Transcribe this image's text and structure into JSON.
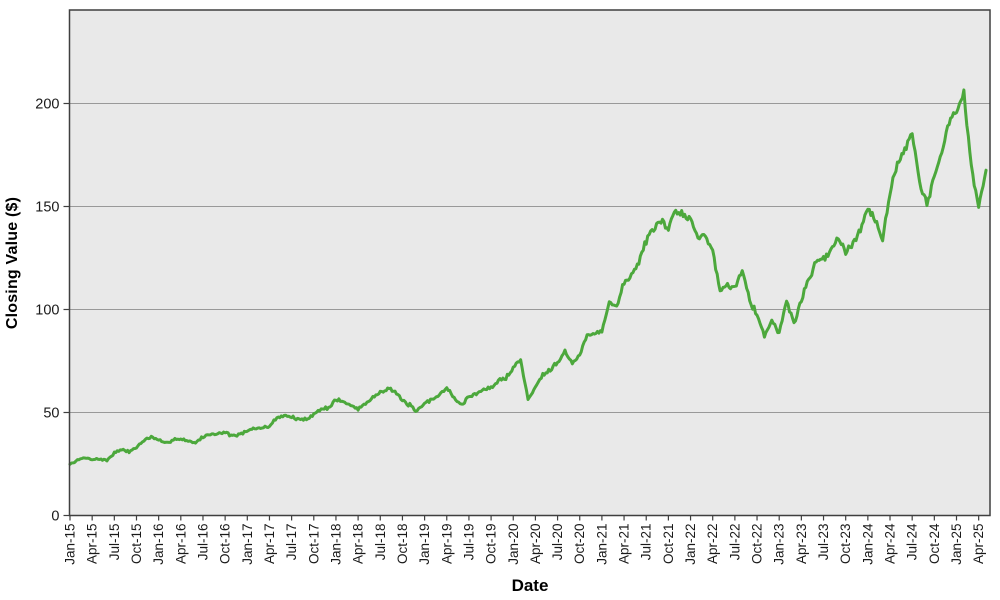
{
  "chart_data": {
    "type": "line",
    "title": "",
    "xlabel": "Date",
    "ylabel": "Closing Value ($)",
    "x_start": "Jan-15",
    "x_interval": "monthly",
    "x_tick_labels": [
      "Jan-15",
      "Apr-15",
      "Jul-15",
      "Oct-15",
      "Jan-16",
      "Apr-16",
      "Jul-16",
      "Oct-16",
      "Jan-17",
      "Apr-17",
      "Jul-17",
      "Oct-17",
      "Jan-18",
      "Apr-18",
      "Jul-18",
      "Oct-18",
      "Jan-19",
      "Apr-19",
      "Jul-19",
      "Oct-19",
      "Jan-20",
      "Apr-20",
      "Jul-20",
      "Oct-20",
      "Jan-21",
      "Apr-21",
      "Jul-21",
      "Oct-21",
      "Jan-22",
      "Apr-22",
      "Jul-22",
      "Oct-22",
      "Jan-23",
      "Apr-23",
      "Jul-23",
      "Oct-23",
      "Jan-24",
      "Apr-24",
      "Jul-24",
      "Oct-24",
      "Jan-25",
      "Apr-25"
    ],
    "y_tick_labels": [
      "0",
      "50",
      "100",
      "150",
      "200"
    ],
    "y_ticks": [
      0,
      50,
      100,
      150,
      200
    ],
    "ylim": [
      0,
      245.4
    ],
    "grid": "horizontal",
    "legend": "none",
    "series": [
      {
        "name": "Closing Value",
        "values": [
          24.8,
          26.8,
          28.0,
          27.3,
          27.4,
          26.7,
          30.5,
          31.8,
          31.0,
          33.1,
          36.5,
          38.0,
          36.5,
          35.0,
          37.0,
          37.2,
          36.2,
          35.3,
          38.2,
          39.4,
          39.8,
          40.4,
          38.6,
          39.4,
          40.9,
          42.3,
          42.4,
          43.4,
          47.4,
          48.7,
          47.8,
          46.4,
          46.8,
          49.2,
          51.7,
          52.3,
          56.4,
          55.1,
          53.4,
          51.9,
          54.3,
          57.4,
          59.9,
          61.9,
          60.3,
          55.4,
          53.6,
          50.3,
          54.6,
          56.1,
          59.1,
          61.8,
          56.9,
          53.8,
          57.6,
          59.1,
          61.2,
          62.1,
          65.1,
          66.9,
          71.9,
          75.6,
          56.2,
          62.4,
          68.6,
          70.9,
          74.8,
          79.5,
          73.9,
          77.8,
          87.5,
          88.2,
          89.9,
          103.7,
          101.3,
          112.9,
          117.1,
          122.4,
          133.8,
          137.8,
          143.0,
          138.9,
          148.9,
          146.1,
          144.3,
          134.8,
          135.7,
          128.6,
          109.3,
          111.8,
          110.6,
          120.2,
          104.7,
          97.4,
          87.3,
          94.6,
          88.7,
          103.8,
          93.2,
          104.9,
          114.8,
          122.9,
          124.7,
          129.4,
          134.3,
          128.4,
          132.6,
          138.5,
          149.8,
          144.3,
          133.8,
          156.7,
          170.5,
          177.9,
          187.6,
          161.3,
          150.8,
          164.5,
          175.4,
          191.2,
          195.3,
          204.8,
          169.6,
          149.9,
          168.2
        ]
      }
    ],
    "colors": {
      "line": "#4ca83c",
      "plot_background": "#e9e9e9",
      "figure_background": "#ffffff",
      "gridline": "#999999",
      "border": "#3f3f3f",
      "tick_text": "#1a1a1a"
    }
  }
}
